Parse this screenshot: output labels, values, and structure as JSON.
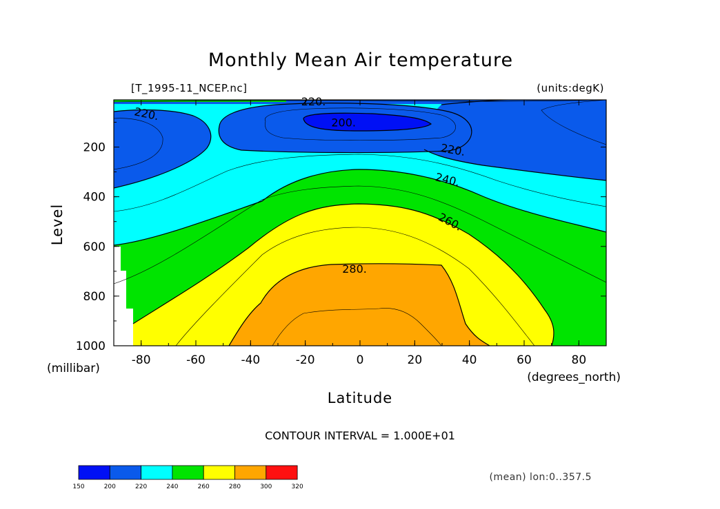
{
  "chart_data": {
    "type": "contour",
    "title": "Monthly Mean Air temperature",
    "file_label": "[T_1995-11_NCEP.nc]",
    "units_label": "(units:degK)",
    "xlabel": "Latitude",
    "x_units": "(degrees_north)",
    "ylabel": "Level",
    "y_units": "(millibar)",
    "xlim": [
      -90,
      90
    ],
    "ylim": [
      1000,
      10
    ],
    "y_inverted": true,
    "x_ticks": [
      "-80",
      "-60",
      "-40",
      "-20",
      "0",
      "20",
      "40",
      "60",
      "80"
    ],
    "x_tick_values": [
      -80,
      -60,
      -40,
      -20,
      0,
      20,
      40,
      60,
      80
    ],
    "y_ticks": [
      "200",
      "400",
      "600",
      "800",
      "1000"
    ],
    "y_tick_values": [
      200,
      400,
      600,
      800,
      1000
    ],
    "contour_interval_text": "CONTOUR INTERVAL = 1.000E+01",
    "contour_interval": 10,
    "contour_labels": [
      {
        "text": "220.",
        "lat": -78,
        "level": 65
      },
      {
        "text": "220.",
        "lat": -17,
        "level": 15
      },
      {
        "text": "200.",
        "lat": -6,
        "level": 100
      },
      {
        "text": "220.",
        "lat": 34,
        "level": 210
      },
      {
        "text": "240.",
        "lat": 32,
        "level": 330
      },
      {
        "text": "260.",
        "lat": 33,
        "level": 500
      },
      {
        "text": "280.",
        "lat": -2,
        "level": 690
      }
    ],
    "regions": [
      {
        "range": [
          200,
          220
        ],
        "color": "#0a5aeb",
        "bands": [
          {
            "lat": [
              -90,
              -57
            ],
            "top": 82,
            "bot": 360
          },
          {
            "lat": [
              -53,
              34
            ],
            "top": 25,
            "bot": 200
          },
          {
            "lat": [
              27,
              90
            ],
            "top": 15,
            "bot": 330
          }
        ]
      },
      {
        "range": [
          190,
          200
        ],
        "color": "#0010f5",
        "bands": [
          {
            "lat": [
              -20,
              26
            ],
            "top": 60,
            "bot": 125
          }
        ]
      },
      {
        "range": [
          240,
          260
        ],
        "color": "#00e400",
        "bands": [
          {
            "lat": [
              -90,
              90
            ],
            "top": 290,
            "bot": 1000
          }
        ]
      },
      {
        "range": [
          260,
          280
        ],
        "color": "#ffff00",
        "bands": [
          {
            "lat": [
              -83,
              72
            ],
            "top": 400,
            "bot": 1000
          }
        ]
      },
      {
        "range": [
          280,
          300
        ],
        "color": "#ffa600",
        "bands": [
          {
            "lat": [
              -45,
              46
            ],
            "top": 672,
            "bot": 1000
          }
        ]
      }
    ],
    "missing_region": {
      "lat": [
        -90,
        -83
      ],
      "level": [
        600,
        1000
      ],
      "color": "#ffffff"
    },
    "summary_text": "(mean) lon:0..357.5",
    "colorbar": {
      "levels": [
        "150",
        "200",
        "220",
        "240",
        "260",
        "280",
        "300",
        "320"
      ],
      "colors": [
        "#0010f5",
        "#0a5aeb",
        "#00ffff",
        "#00e400",
        "#ffff00",
        "#ffa600",
        "#ff1010"
      ]
    }
  }
}
